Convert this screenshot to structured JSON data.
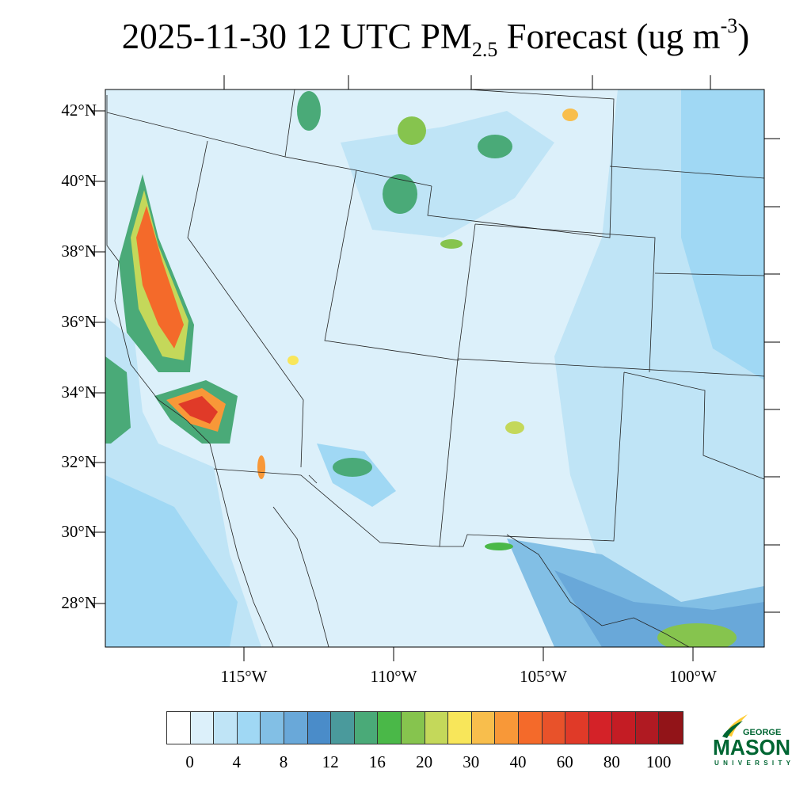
{
  "title": {
    "date": "2025-11-30",
    "hour": "12 UTC",
    "species": "PM",
    "species_sub": "2.5",
    "label": "Forecast",
    "units_pre": "(ug m",
    "units_sup": "-3",
    "units_post": ")"
  },
  "map": {
    "background_color": "#dcf0fa",
    "lat_labels": [
      "42°N",
      "40°N",
      "38°N",
      "36°N",
      "34°N",
      "32°N",
      "30°N",
      "28°N"
    ],
    "lon_labels": [
      "115°W",
      "110°W",
      "105°W",
      "100°W"
    ]
  },
  "colorbar": {
    "colors": [
      "#ffffff",
      "#dcf0fa",
      "#bfe4f6",
      "#a0d8f4",
      "#82bfe5",
      "#69a8d9",
      "#4a8cc9",
      "#4a9a9c",
      "#4aaa78",
      "#4ab848",
      "#86c44e",
      "#c4d85a",
      "#f8e65a",
      "#f8be4c",
      "#f89838",
      "#f46a2a",
      "#e8522a",
      "#e03a28",
      "#d42228",
      "#c41c24",
      "#b01a22",
      "#921418"
    ],
    "labels": [
      "0",
      "4",
      "8",
      "12",
      "16",
      "20",
      "30",
      "40",
      "60",
      "80",
      "100"
    ]
  },
  "logo": {
    "line1": "GEORGE",
    "line2": "MASON",
    "line3": "UNIVERSITY",
    "color": "#006633",
    "accent": "#ffcc33"
  }
}
